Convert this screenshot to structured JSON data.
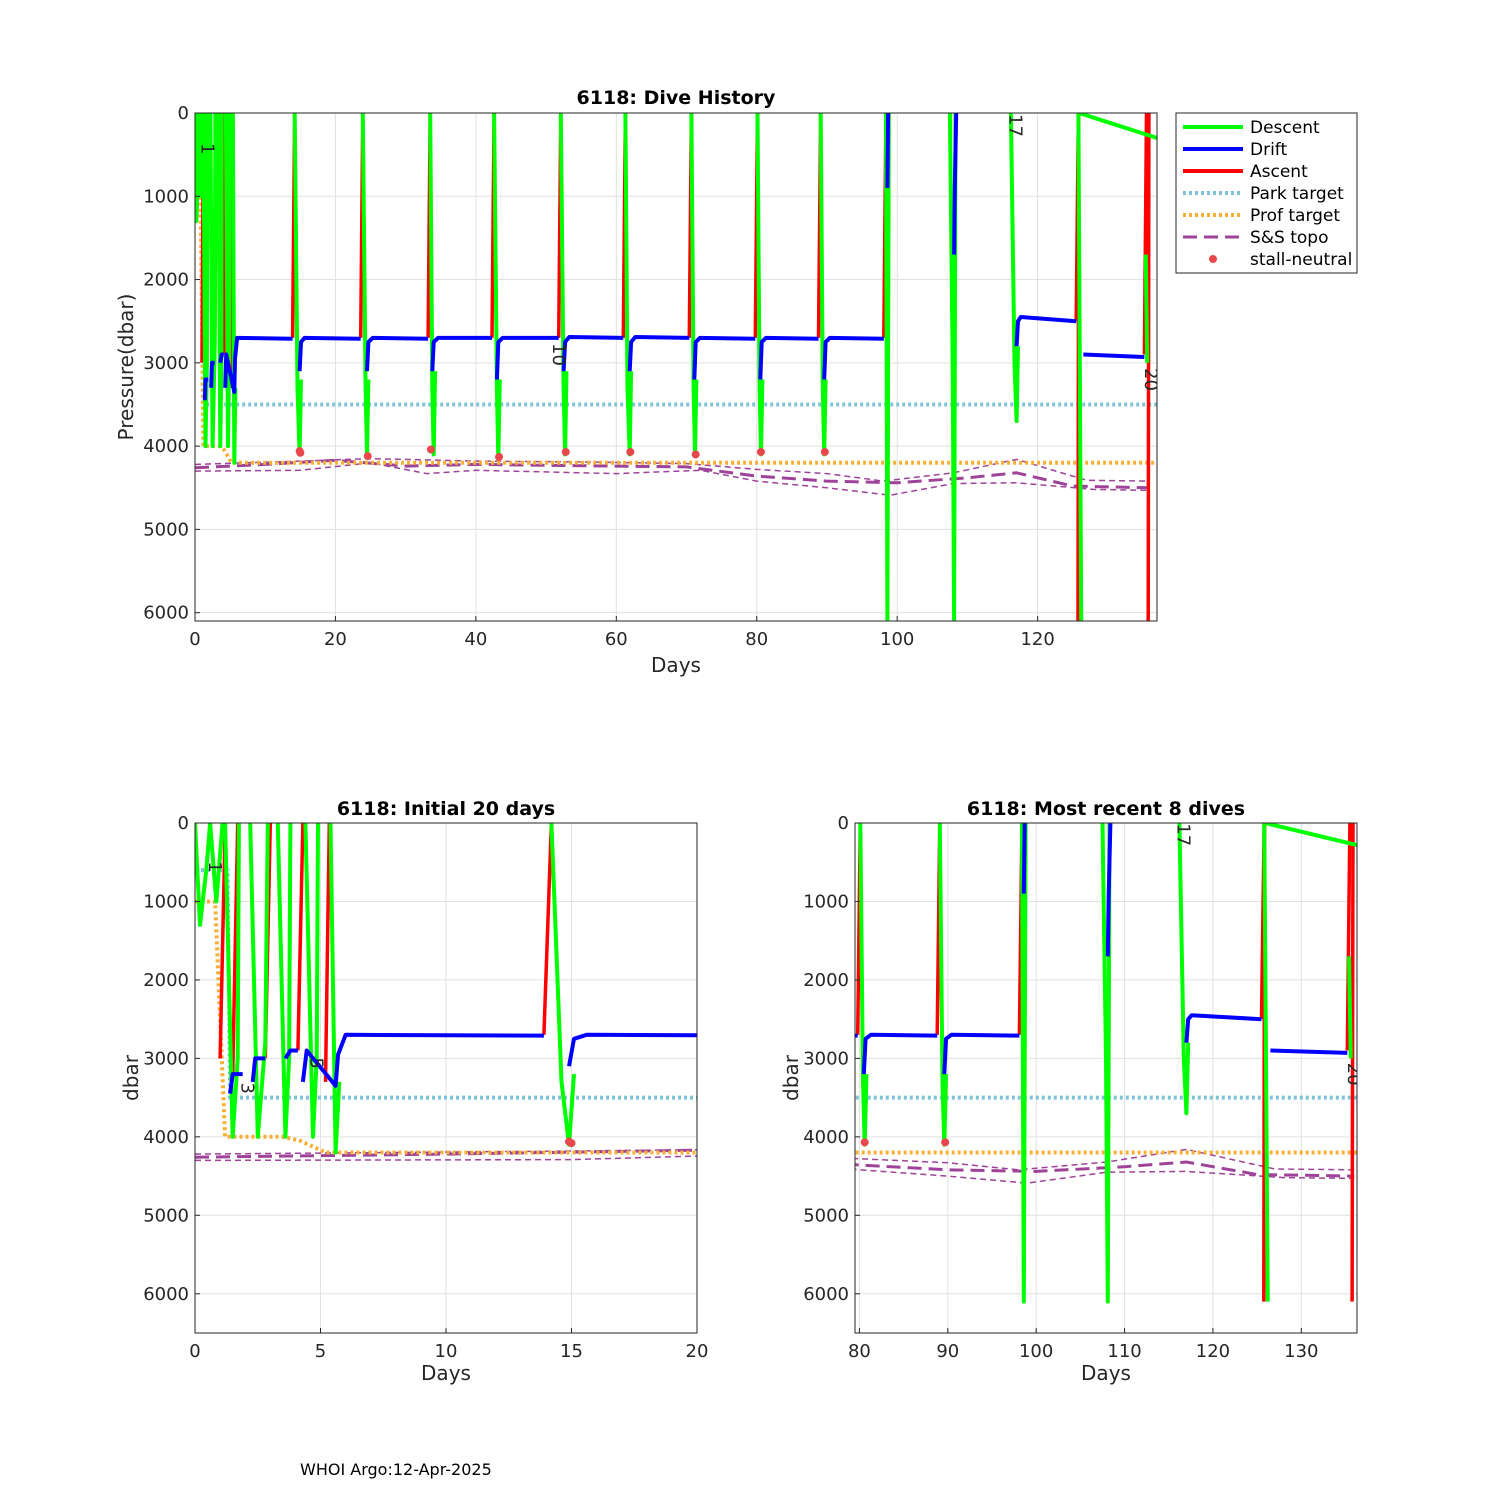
{
  "footer": "WHOI Argo:12-Apr-2025",
  "colors": {
    "descent": "#00ff00",
    "drift": "#0000ff",
    "ascent": "#ff0000",
    "park": "#7ec3d8",
    "prof": "#f7b035",
    "topo": "#9e4399",
    "stall": "#e8484b"
  },
  "legend": {
    "descent": "Descent",
    "drift": "Drift",
    "ascent": "Ascent",
    "park": "Park target",
    "prof": "Prof target",
    "topo": "S&S topo",
    "stall": "stall-neutral"
  },
  "chart_data": [
    {
      "id": "main",
      "type": "line",
      "title": "6118: Dive History",
      "xlabel": "Days",
      "ylabel": "Pressure(dbar)",
      "xlim": [
        0,
        137
      ],
      "ylim": [
        0,
        6100
      ],
      "xticks": [
        0,
        20,
        40,
        60,
        80,
        100,
        120
      ],
      "yticks": [
        0,
        1000,
        2000,
        3000,
        4000,
        5000,
        6000
      ],
      "cycle_labels": [
        {
          "text": "1",
          "x": 0.9,
          "y": 430
        },
        {
          "text": "10",
          "x": 51.0,
          "y": 2900
        },
        {
          "text": "17",
          "x": 116.0,
          "y": 150
        },
        {
          "text": "20",
          "x": 135.3,
          "y": 3200
        }
      ]
    },
    {
      "id": "initial",
      "type": "line",
      "title": "6118: Initial 20 days",
      "xlabel": "Days",
      "ylabel": "dbar",
      "xlim": [
        0,
        20
      ],
      "ylim": [
        0,
        6500
      ],
      "xticks": [
        0,
        5,
        10,
        15,
        20
      ],
      "yticks": [
        0,
        1000,
        2000,
        3000,
        4000,
        5000,
        6000
      ],
      "cycle_labels": [
        {
          "text": "1",
          "x": 0.55,
          "y": 560
        },
        {
          "text": "3",
          "x": 1.85,
          "y": 3380
        },
        {
          "text": "5",
          "x": 4.6,
          "y": 3060
        }
      ]
    },
    {
      "id": "recent",
      "type": "line",
      "title": "6118: Most recent 8 dives",
      "xlabel": "Days",
      "ylabel": "dbar",
      "xlim": [
        79.5,
        136.3
      ],
      "ylim": [
        0,
        6500
      ],
      "xticks": [
        80,
        90,
        100,
        110,
        120,
        130
      ],
      "yticks": [
        0,
        1000,
        2000,
        3000,
        4000,
        5000,
        6000
      ],
      "cycle_labels": [
        {
          "text": "17",
          "x": 116.0,
          "y": 150
        },
        {
          "text": "20",
          "x": 135.3,
          "y": 3200
        }
      ]
    }
  ],
  "series": {
    "park_target": [
      [
        0,
        600
      ],
      [
        1.3,
        600
      ],
      [
        1.4,
        3500
      ],
      [
        137,
        3500
      ]
    ],
    "prof_target": [
      [
        0,
        1000
      ],
      [
        0.8,
        1000
      ],
      [
        1.2,
        4000
      ],
      [
        3.5,
        4000
      ],
      [
        4.2,
        4050
      ],
      [
        5.2,
        4200
      ],
      [
        137,
        4200
      ]
    ],
    "topo_main": [
      [
        0,
        4260
      ],
      [
        10,
        4220
      ],
      [
        20,
        4170
      ],
      [
        30,
        4240
      ],
      [
        40,
        4220
      ],
      [
        50,
        4230
      ],
      [
        60,
        4240
      ],
      [
        70,
        4250
      ],
      [
        80,
        4360
      ],
      [
        90,
        4420
      ],
      [
        100,
        4440
      ],
      [
        110,
        4380
      ],
      [
        117,
        4320
      ],
      [
        125,
        4480
      ],
      [
        136,
        4500
      ]
    ],
    "topo_upper": [
      [
        0,
        4220
      ],
      [
        15,
        4180
      ],
      [
        25,
        4150
      ],
      [
        40,
        4180
      ],
      [
        55,
        4190
      ],
      [
        70,
        4210
      ],
      [
        80,
        4280
      ],
      [
        90,
        4330
      ],
      [
        98,
        4420
      ],
      [
        108,
        4320
      ],
      [
        117,
        4160
      ],
      [
        127,
        4410
      ],
      [
        136,
        4420
      ]
    ],
    "topo_lower": [
      [
        0,
        4300
      ],
      [
        15,
        4290
      ],
      [
        25,
        4200
      ],
      [
        33,
        4330
      ],
      [
        40,
        4290
      ],
      [
        60,
        4330
      ],
      [
        72,
        4290
      ],
      [
        80,
        4420
      ],
      [
        90,
        4500
      ],
      [
        99,
        4590
      ],
      [
        108,
        4450
      ],
      [
        117,
        4440
      ],
      [
        128,
        4520
      ],
      [
        136,
        4530
      ]
    ],
    "drift": [
      [
        [
          1.4,
          3450
        ],
        [
          1.5,
          3200
        ],
        [
          1.9,
          3200
        ]
      ],
      [
        [
          2.3,
          3300
        ],
        [
          2.4,
          3000
        ],
        [
          2.8,
          3000
        ]
      ],
      [
        [
          3.6,
          3000
        ],
        [
          3.8,
          2900
        ],
        [
          4.1,
          2900
        ]
      ],
      [
        [
          4.3,
          3300
        ],
        [
          4.45,
          2900
        ],
        [
          5.6,
          3350
        ],
        [
          5.7,
          2950
        ],
        [
          6.0,
          2700
        ],
        [
          13.9,
          2710
        ]
      ],
      [
        [
          14.9,
          3100
        ],
        [
          15.1,
          2750
        ],
        [
          15.6,
          2700
        ],
        [
          23.6,
          2710
        ]
      ],
      [
        [
          24.5,
          3100
        ],
        [
          24.7,
          2750
        ],
        [
          25.3,
          2700
        ],
        [
          33.2,
          2710
        ]
      ],
      [
        [
          33.8,
          3100
        ],
        [
          34.0,
          2750
        ],
        [
          34.6,
          2700
        ],
        [
          42.3,
          2700
        ]
      ],
      [
        [
          43.0,
          3200
        ],
        [
          43.2,
          2750
        ],
        [
          43.8,
          2700
        ],
        [
          51.8,
          2700
        ]
      ],
      [
        [
          52.5,
          3100
        ],
        [
          52.7,
          2750
        ],
        [
          53.3,
          2690
        ],
        [
          61.0,
          2700
        ]
      ],
      [
        [
          61.9,
          3100
        ],
        [
          62.1,
          2750
        ],
        [
          62.7,
          2690
        ],
        [
          70.4,
          2700
        ]
      ],
      [
        [
          71.1,
          3200
        ],
        [
          71.3,
          2750
        ],
        [
          71.9,
          2700
        ],
        [
          79.8,
          2710
        ]
      ],
      [
        [
          80.5,
          3200
        ],
        [
          80.7,
          2750
        ],
        [
          81.3,
          2700
        ],
        [
          88.8,
          2710
        ]
      ],
      [
        [
          89.6,
          3200
        ],
        [
          89.8,
          2750
        ],
        [
          90.4,
          2700
        ],
        [
          98.1,
          2710
        ]
      ],
      [
        [
          98.6,
          900
        ],
        [
          98.7,
          0
        ]
      ],
      [
        [
          108.1,
          1700
        ],
        [
          108.2,
          900
        ],
        [
          108.4,
          0
        ]
      ],
      [
        [
          117.0,
          2800
        ],
        [
          117.2,
          2500
        ],
        [
          117.6,
          2450
        ],
        [
          125.5,
          2500
        ]
      ],
      [
        [
          126.5,
          2900
        ],
        [
          135.2,
          2930
        ]
      ]
    ],
    "ascent": [
      [
        [
          1.0,
          3000
        ],
        [
          1.2,
          100
        ]
      ],
      [
        [
          1.5,
          3200
        ],
        [
          1.7,
          0
        ]
      ],
      [
        [
          2.8,
          3000
        ],
        [
          3.0,
          0
        ]
      ],
      [
        [
          4.1,
          2900
        ],
        [
          4.3,
          0
        ]
      ],
      [
        [
          5.2,
          3300
        ],
        [
          5.35,
          0
        ]
      ],
      [
        [
          13.9,
          2700
        ],
        [
          14.2,
          0
        ]
      ],
      [
        [
          23.6,
          2700
        ],
        [
          23.9,
          0
        ]
      ],
      [
        [
          33.2,
          2700
        ],
        [
          33.5,
          0
        ]
      ],
      [
        [
          42.3,
          2700
        ],
        [
          42.6,
          0
        ]
      ],
      [
        [
          51.8,
          2700
        ],
        [
          52.1,
          0
        ]
      ],
      [
        [
          61.0,
          2700
        ],
        [
          61.3,
          0
        ]
      ],
      [
        [
          70.4,
          2700
        ],
        [
          70.7,
          0
        ]
      ],
      [
        [
          79.8,
          2700
        ],
        [
          80.1,
          0
        ]
      ],
      [
        [
          88.8,
          2700
        ],
        [
          89.1,
          0
        ]
      ],
      [
        [
          98.1,
          2700
        ],
        [
          98.4,
          0
        ]
      ],
      [
        [
          125.5,
          2500
        ],
        [
          125.8,
          0
        ]
      ],
      [
        [
          125.75,
          6100
        ],
        [
          125.85,
          0
        ]
      ],
      [
        [
          135.2,
          2900
        ],
        [
          135.5,
          0
        ]
      ],
      [
        [
          135.75,
          6100
        ],
        [
          135.85,
          0
        ]
      ]
    ],
    "descent": [
      [
        [
          0,
          0
        ],
        [
          0.2,
          1300
        ],
        [
          0.45,
          600
        ],
        [
          0.6,
          0
        ]
      ],
      [
        [
          0.6,
          0
        ],
        [
          0.85,
          1000
        ],
        [
          1.0,
          400
        ],
        [
          1.1,
          0
        ]
      ],
      [
        [
          1.2,
          0
        ],
        [
          1.5,
          4000
        ],
        [
          1.7,
          3000
        ],
        [
          1.75,
          0
        ]
      ],
      [
        [
          2.2,
          0
        ],
        [
          2.5,
          4000
        ],
        [
          2.8,
          2800
        ],
        [
          2.9,
          0
        ]
      ],
      [
        [
          3.3,
          0
        ],
        [
          3.6,
          4000
        ],
        [
          3.75,
          3000
        ],
        [
          3.8,
          0
        ]
      ],
      [
        [
          4.4,
          0
        ],
        [
          4.7,
          4000
        ],
        [
          4.85,
          3000
        ],
        [
          4.9,
          0
        ]
      ],
      [
        [
          5.4,
          0
        ],
        [
          5.6,
          4200
        ],
        [
          5.75,
          3300
        ]
      ],
      [
        [
          14.2,
          0
        ],
        [
          14.6,
          3300
        ],
        [
          14.9,
          4100
        ],
        [
          15.1,
          3200
        ]
      ],
      [
        [
          23.9,
          0
        ],
        [
          24.3,
          3300
        ],
        [
          24.5,
          4100
        ],
        [
          24.7,
          3200
        ]
      ],
      [
        [
          33.5,
          0
        ],
        [
          33.8,
          3300
        ],
        [
          34.0,
          4100
        ],
        [
          34.2,
          3100
        ]
      ],
      [
        [
          42.6,
          0
        ],
        [
          43.0,
          3300
        ],
        [
          43.2,
          4150
        ],
        [
          43.4,
          3200
        ]
      ],
      [
        [
          52.1,
          0
        ],
        [
          52.5,
          3300
        ],
        [
          52.7,
          4100
        ],
        [
          52.9,
          3100
        ]
      ],
      [
        [
          61.3,
          0
        ],
        [
          61.6,
          3300
        ],
        [
          61.9,
          4100
        ],
        [
          62.1,
          3100
        ]
      ],
      [
        [
          70.7,
          0
        ],
        [
          71.0,
          3300
        ],
        [
          71.2,
          4100
        ],
        [
          71.4,
          3200
        ]
      ],
      [
        [
          80.1,
          0
        ],
        [
          80.4,
          3300
        ],
        [
          80.6,
          4100
        ],
        [
          80.8,
          3200
        ]
      ],
      [
        [
          89.1,
          0
        ],
        [
          89.4,
          3300
        ],
        [
          89.6,
          4100
        ],
        [
          89.8,
          3200
        ]
      ],
      [
        [
          98.4,
          0
        ],
        [
          98.6,
          6100
        ],
        [
          98.8,
          0
        ]
      ],
      [
        [
          107.5,
          0
        ],
        [
          107.9,
          3000
        ],
        [
          108.1,
          6100
        ],
        [
          108.3,
          0
        ]
      ],
      [
        [
          116.2,
          0
        ],
        [
          116.7,
          3000
        ],
        [
          117.0,
          3700
        ],
        [
          117.2,
          2800
        ]
      ],
      [
        [
          125.8,
          0
        ],
        [
          126.0,
          3000
        ],
        [
          126.2,
          6100
        ]
      ],
      [
        [
          125.9,
          0
        ],
        [
          137,
          300
        ]
      ],
      [
        [
          135.4,
          1700
        ],
        [
          135.6,
          3000
        ]
      ]
    ],
    "stall": [
      [
        15.0,
        4080
      ],
      [
        24.6,
        4120
      ],
      [
        33.6,
        4040
      ],
      [
        43.3,
        4130
      ],
      [
        52.8,
        4070
      ],
      [
        62.0,
        4070
      ],
      [
        71.3,
        4100
      ],
      [
        80.6,
        4070
      ],
      [
        89.7,
        4070
      ],
      [
        14.9,
        4060
      ]
    ]
  }
}
